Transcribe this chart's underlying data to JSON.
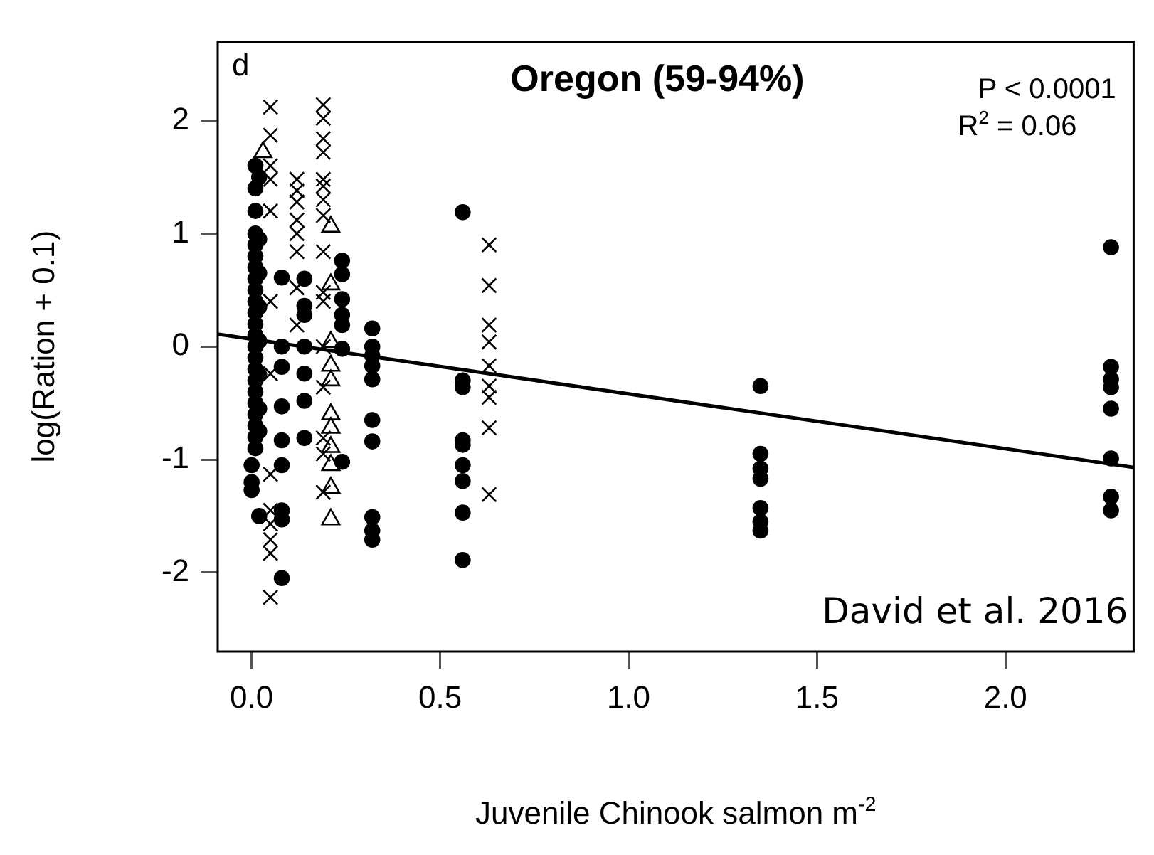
{
  "chart_data": {
    "type": "scatter",
    "title": "Oregon (59-94%)",
    "xlabel": "Juvenile Chinook salmon m$^{-2}$",
    "ylabel": "log(Ration + 0.1)",
    "annotations": [
      "d",
      "P < 0.0001",
      "R$^{2}$ = 0.06",
      "David et al. 2016"
    ],
    "xlim": [
      -0.09,
      2.34
    ],
    "ylim": [
      -2.7,
      2.7
    ],
    "xticks": [
      {
        "value": 0,
        "label": "0.0"
      },
      0.5,
      {
        "value": 1,
        "label": "1.0"
      },
      1.5,
      {
        "value": 2,
        "label": "2.0"
      }
    ],
    "yticks": [
      -2,
      -1,
      0,
      1,
      2
    ],
    "grid": false,
    "legend": false,
    "series": [
      {
        "marker": "circle",
        "color": "#000000",
        "x": [
          0.01,
          0.01,
          0.01,
          0.01,
          0.01,
          0.01,
          0.01,
          0.01,
          0.01,
          0.01,
          0.01,
          0.01,
          0.01,
          0.01,
          0.01,
          0.01,
          0.01,
          0.01,
          0.01,
          0.01,
          0.01,
          0.01,
          0.01,
          0.02,
          0.02,
          0.02,
          0.02,
          0.02,
          0.02,
          0.02,
          0.02,
          0.02,
          0.0,
          0.0,
          0.0,
          0.08,
          0.08,
          0.08,
          0.08,
          0.08,
          0.08,
          0.08,
          0.08,
          0.08,
          0.14,
          0.14,
          0.14,
          0.14,
          0.14,
          0.14,
          0.14,
          0.24,
          0.24,
          0.24,
          0.24,
          0.24,
          0.24,
          0.24,
          0.32,
          0.32,
          0.32,
          0.32,
          0.32,
          0.32,
          0.32,
          0.32,
          0.32,
          0.32,
          0.56,
          0.56,
          0.56,
          0.56,
          0.56,
          0.56,
          0.56,
          0.56,
          0.56,
          1.35,
          1.35,
          1.35,
          1.35,
          1.35,
          1.35,
          1.35,
          2.28,
          2.28,
          2.28,
          2.28,
          2.28,
          2.28,
          2.28,
          2.28
        ],
        "values": [
          1.6,
          1.4,
          1.2,
          1.0,
          0.9,
          0.8,
          0.7,
          0.6,
          0.5,
          0.4,
          0.3,
          0.2,
          0.1,
          0,
          -0.1,
          -0.2,
          -0.3,
          -0.4,
          -0.5,
          -0.6,
          -0.7,
          -0.8,
          -0.9,
          1.5,
          0.95,
          0.65,
          0.35,
          0.05,
          -0.25,
          -0.55,
          -0.75,
          -1.5,
          -1.05,
          -1.2,
          -1.27,
          0.61,
          0,
          -0.18,
          -0.53,
          -0.83,
          -1.05,
          -1.45,
          -1.53,
          -2.05,
          0.6,
          0.36,
          0.28,
          0,
          -0.24,
          -0.48,
          -0.81,
          0.76,
          0.64,
          0.42,
          0.28,
          0.19,
          -0.02,
          -1.02,
          0.16,
          0,
          -0.08,
          -0.17,
          -0.29,
          -0.65,
          -0.84,
          -1.51,
          -1.63,
          -1.71,
          1.19,
          -0.3,
          -0.36,
          -0.83,
          -0.87,
          -1.05,
          -1.19,
          -1.47,
          -1.89,
          -0.35,
          -0.95,
          -1.08,
          -1.17,
          -1.43,
          -1.55,
          -1.63,
          0.88,
          -0.18,
          -0.29,
          -0.36,
          -0.55,
          -0.99,
          -1.33,
          -1.45
        ]
      },
      {
        "marker": "cross",
        "color": "#000000",
        "x": [
          0.05,
          0.05,
          0.05,
          0.05,
          0.05,
          0.05,
          0.05,
          0.05,
          0.05,
          0.05,
          0.05,
          0.05,
          0.05,
          0.12,
          0.12,
          0.12,
          0.12,
          0.12,
          0.12,
          0.12,
          0.12,
          0.19,
          0.19,
          0.19,
          0.19,
          0.19,
          0.19,
          0.19,
          0.19,
          0.19,
          0.19,
          0.19,
          0.19,
          0.19,
          0.19,
          0.19,
          0.19,
          0.63,
          0.63,
          0.63,
          0.63,
          0.63,
          0.63,
          0.63,
          0.63,
          0.63
        ],
        "values": [
          2.12,
          1.87,
          1.6,
          1.48,
          1.2,
          0.4,
          -0.24,
          -1.13,
          -1.45,
          -1.57,
          -1.71,
          -1.83,
          -2.22,
          1.48,
          1.38,
          1.28,
          1.12,
          1.0,
          0.84,
          0.52,
          0.19,
          2.14,
          2.02,
          1.84,
          1.72,
          1.48,
          1.42,
          1.3,
          1.16,
          0.84,
          0.48,
          0.4,
          0,
          -0.36,
          -0.81,
          -0.95,
          -1.29,
          0.9,
          0.54,
          0.19,
          0.04,
          -0.17,
          -0.35,
          -0.45,
          -0.72,
          -1.31
        ]
      },
      {
        "marker": "triangle",
        "color": "#000000",
        "x": [
          0.03,
          0.21,
          0.21,
          0.21,
          0.21,
          0.21,
          0.21,
          0.21,
          0.21,
          0.21,
          0.21,
          0.21
        ],
        "values": [
          1.72,
          1.06,
          0.55,
          0.04,
          -0.17,
          -0.3,
          -0.6,
          -0.72,
          -0.89,
          -1.05,
          -1.25,
          -1.53
        ]
      },
      {
        "type": "line",
        "marker": "none",
        "color": "#000000",
        "x": [
          -0.09,
          2.34
        ],
        "values": [
          0.11,
          -1.07
        ]
      }
    ]
  }
}
